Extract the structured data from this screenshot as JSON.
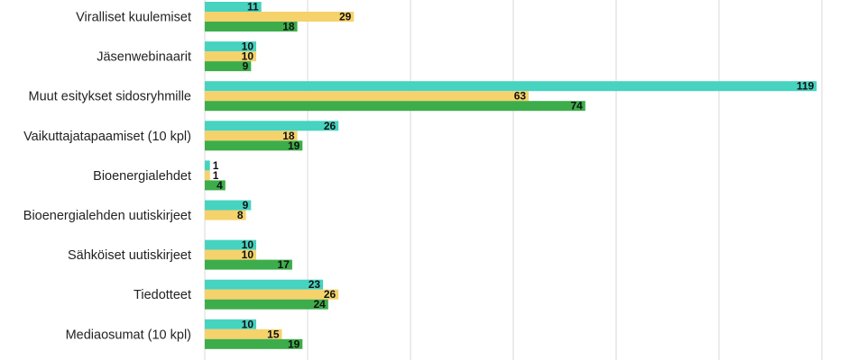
{
  "chart_data": {
    "type": "bar",
    "orientation": "horizontal",
    "categories": [
      "Viralliset kuulemiset",
      "Jäsenwebinaarit",
      "Muut esitykset sidosryhmille",
      "Vaikuttajatapaamiset (10 kpl)",
      "Bioenergialehdet",
      "Bioenergialehden uutiskirjeet",
      "Sähköiset uutiskirjeet",
      "Tiedotteet",
      "Mediaosumat (10 kpl)"
    ],
    "series": [
      {
        "color": "#46d3c0",
        "values": [
          11,
          10,
          119,
          26,
          1,
          9,
          10,
          23,
          10
        ]
      },
      {
        "color": "#f5d26b",
        "values": [
          29,
          10,
          63,
          18,
          1,
          8,
          10,
          26,
          15
        ]
      },
      {
        "color": "#3cad4a",
        "values": [
          18,
          9,
          74,
          19,
          4,
          null,
          17,
          24,
          19
        ]
      }
    ],
    "xlim": [
      0,
      120
    ],
    "grid": true,
    "legend": "none",
    "title": "",
    "xlabel": "",
    "ylabel": ""
  }
}
